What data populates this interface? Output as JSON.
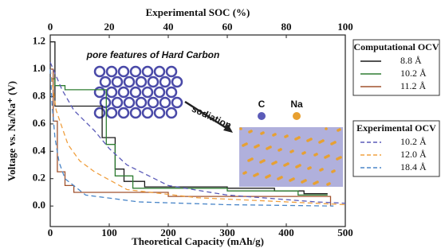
{
  "chart_data": {
    "type": "line",
    "xlabel": "Theoretical Capacity (mAh/g)",
    "ylabel": "Voltage vs. Na/Na⁺ (V)",
    "x2label": "Experimental SOC (%)",
    "xlim": [
      0,
      500
    ],
    "xticks": [
      0,
      100,
      200,
      300,
      400,
      500
    ],
    "x2lim": [
      0,
      100
    ],
    "x2ticks": [
      0,
      20,
      40,
      60,
      80,
      100
    ],
    "ylim": [
      -0.15,
      1.25
    ],
    "yticks": [
      {
        "value": 0,
        "label": "0.0"
      },
      0.2,
      0.4,
      0.6,
      0.8,
      {
        "value": 1,
        "label": "1.0"
      },
      1.2
    ],
    "annotations": [
      "pore features of Hard Carbon",
      "sodiation",
      "C",
      "Na"
    ],
    "legend_titles": [
      "Computational OCV",
      "Experimental OCV"
    ],
    "series": [
      {
        "name": "8.8 Å",
        "color": "#1a1a1a",
        "style": "solid",
        "x": [
          0,
          8,
          8,
          88,
          88,
          110,
          110,
          125,
          125,
          160,
          160,
          300,
          300,
          380,
          380,
          430,
          430,
          470
        ],
        "values": [
          1.2,
          1.2,
          0.73,
          0.73,
          0.5,
          0.5,
          0.27,
          0.27,
          0.18,
          0.18,
          0.14,
          0.14,
          0.13,
          0.13,
          0.11,
          0.11,
          0.09,
          0.09
        ]
      },
      {
        "name": "10.2 Å",
        "color": "#2e7d32",
        "style": "solid",
        "x": [
          0,
          8,
          8,
          25,
          25,
          95,
          95,
          110,
          110,
          140,
          140,
          300,
          300,
          420,
          420,
          470
        ],
        "values": [
          0.93,
          0.93,
          0.88,
          0.88,
          0.85,
          0.85,
          0.45,
          0.45,
          0.22,
          0.22,
          0.13,
          0.13,
          0.11,
          0.11,
          0.08,
          0.08
        ]
      },
      {
        "name": "11.2 Å",
        "color": "#a0522d",
        "style": "solid",
        "x": [
          0,
          5,
          5,
          12,
          12,
          25,
          25,
          40,
          40,
          200,
          200,
          475,
          475
        ],
        "values": [
          1.0,
          1.0,
          0.62,
          0.62,
          0.25,
          0.25,
          0.15,
          0.15,
          0.1,
          0.1,
          0.07,
          0.07,
          0.0
        ]
      },
      {
        "name": "10.2 Å",
        "color": "#5b5bb8",
        "style": "dashed",
        "x": [
          0,
          20,
          40,
          75,
          100,
          130,
          200,
          300,
          450,
          500
        ],
        "values": [
          1.05,
          0.85,
          0.7,
          0.55,
          0.42,
          0.3,
          0.15,
          0.08,
          0.03,
          0.02
        ]
      },
      {
        "name": "12.0 Å",
        "color": "#f0a040",
        "style": "dashed",
        "x": [
          0,
          10,
          30,
          50,
          75,
          130,
          250,
          450,
          500
        ],
        "values": [
          1.0,
          0.7,
          0.45,
          0.33,
          0.25,
          0.12,
          0.06,
          0.02,
          0.01
        ]
      },
      {
        "name": "18.4 Å",
        "color": "#4a86c8",
        "style": "dashed",
        "x": [
          0,
          3,
          8,
          15,
          25,
          60,
          150,
          300,
          480
        ],
        "values": [
          1.0,
          0.75,
          0.5,
          0.32,
          0.2,
          0.08,
          0.03,
          0.01,
          0.0
        ]
      }
    ]
  }
}
